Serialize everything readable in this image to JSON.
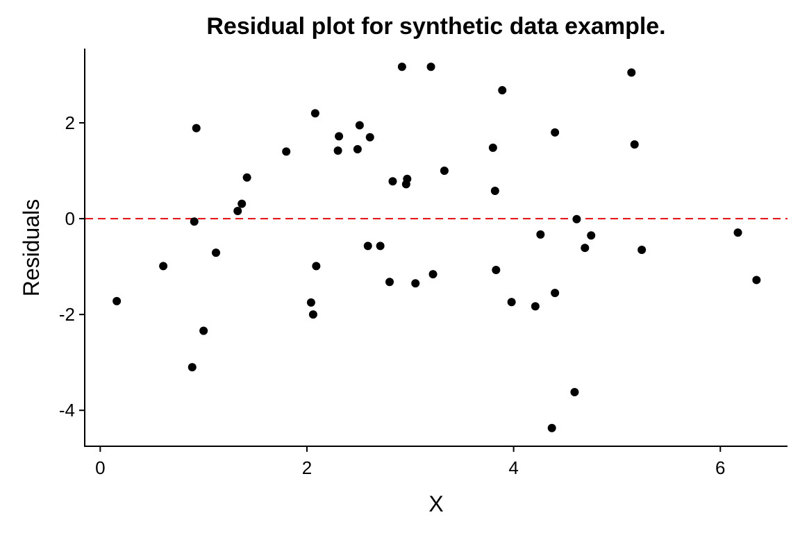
{
  "chart_data": {
    "type": "scatter",
    "title": "Residual plot for synthetic data example.",
    "xlabel": "X",
    "ylabel": "Residuals",
    "xlim": [
      -0.15,
      6.65
    ],
    "ylim": [
      -4.75,
      3.55
    ],
    "x_ticks": [
      0,
      2,
      4,
      6
    ],
    "y_ticks": [
      -4,
      -2,
      0,
      2
    ],
    "x_tick_labels": [
      "0",
      "2",
      "4",
      "6"
    ],
    "y_tick_labels": [
      "-4",
      "-2",
      "0",
      "2"
    ],
    "grid": false,
    "reference_line": {
      "y": 0,
      "style": "dashed",
      "color": "#e41a1c"
    },
    "point_color": "#000000",
    "points": [
      {
        "x": 0.16,
        "y": -1.72
      },
      {
        "x": 0.61,
        "y": -0.99
      },
      {
        "x": 0.89,
        "y": -3.1
      },
      {
        "x": 0.91,
        "y": -0.06
      },
      {
        "x": 0.93,
        "y": 1.89
      },
      {
        "x": 1.0,
        "y": -2.34
      },
      {
        "x": 1.12,
        "y": -0.71
      },
      {
        "x": 1.33,
        "y": 0.16
      },
      {
        "x": 1.37,
        "y": 0.31
      },
      {
        "x": 1.42,
        "y": 0.86
      },
      {
        "x": 1.8,
        "y": 1.4
      },
      {
        "x": 2.04,
        "y": -1.75
      },
      {
        "x": 2.06,
        "y": -2.0
      },
      {
        "x": 2.08,
        "y": 2.2
      },
      {
        "x": 2.09,
        "y": -0.99
      },
      {
        "x": 2.3,
        "y": 1.42
      },
      {
        "x": 2.31,
        "y": 1.72
      },
      {
        "x": 2.49,
        "y": 1.45
      },
      {
        "x": 2.51,
        "y": 1.95
      },
      {
        "x": 2.59,
        "y": -0.57
      },
      {
        "x": 2.61,
        "y": 1.7
      },
      {
        "x": 2.71,
        "y": -0.57
      },
      {
        "x": 2.8,
        "y": -1.32
      },
      {
        "x": 2.83,
        "y": 0.78
      },
      {
        "x": 2.92,
        "y": 3.17
      },
      {
        "x": 2.96,
        "y": 0.72
      },
      {
        "x": 2.97,
        "y": 0.83
      },
      {
        "x": 3.05,
        "y": -1.35
      },
      {
        "x": 3.2,
        "y": 3.17
      },
      {
        "x": 3.22,
        "y": -1.16
      },
      {
        "x": 3.33,
        "y": 1.0
      },
      {
        "x": 3.8,
        "y": 1.48
      },
      {
        "x": 3.82,
        "y": 0.58
      },
      {
        "x": 3.83,
        "y": -1.07
      },
      {
        "x": 3.89,
        "y": 2.68
      },
      {
        "x": 3.98,
        "y": -1.74
      },
      {
        "x": 4.21,
        "y": -1.83
      },
      {
        "x": 4.26,
        "y": -0.33
      },
      {
        "x": 4.37,
        "y": -4.37
      },
      {
        "x": 4.4,
        "y": 1.8
      },
      {
        "x": 4.4,
        "y": -1.55
      },
      {
        "x": 4.59,
        "y": -3.62
      },
      {
        "x": 4.61,
        "y": -0.01
      },
      {
        "x": 4.69,
        "y": -0.61
      },
      {
        "x": 4.75,
        "y": -0.35
      },
      {
        "x": 5.14,
        "y": 3.05
      },
      {
        "x": 5.17,
        "y": 1.55
      },
      {
        "x": 5.24,
        "y": -0.65
      },
      {
        "x": 6.17,
        "y": -0.29
      },
      {
        "x": 6.35,
        "y": -1.28
      }
    ]
  }
}
